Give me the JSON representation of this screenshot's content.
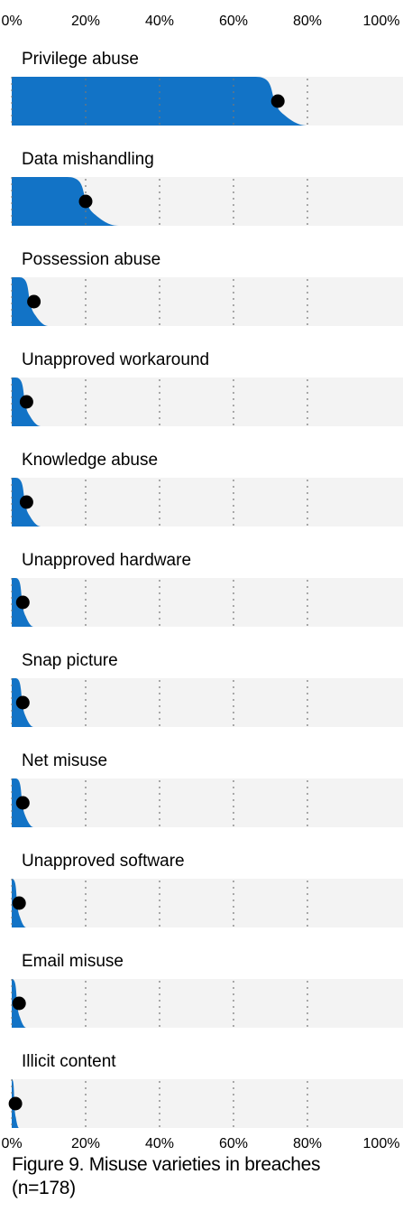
{
  "chart_data": {
    "type": "area",
    "title": "Figure 9. Misuse varieties in breaches",
    "subtitle": "(n=178)",
    "x_ticks": [
      "0%",
      "20%",
      "40%",
      "60%",
      "80%",
      "100%"
    ],
    "xlim": [
      0,
      100
    ],
    "grid": true,
    "series": [
      {
        "name": "Privilege abuse",
        "value": 72,
        "low": 66,
        "high": 80
      },
      {
        "name": "Data mishandling",
        "value": 20,
        "low": 15,
        "high": 29
      },
      {
        "name": "Possession abuse",
        "value": 6,
        "low": 2,
        "high": 10
      },
      {
        "name": "Unapproved workaround",
        "value": 4,
        "low": 1,
        "high": 8
      },
      {
        "name": "Knowledge abuse",
        "value": 4,
        "low": 1,
        "high": 8
      },
      {
        "name": "Unapproved hardware",
        "value": 3,
        "low": 1,
        "high": 6
      },
      {
        "name": "Snap picture",
        "value": 3,
        "low": 1,
        "high": 6
      },
      {
        "name": "Net misuse",
        "value": 3,
        "low": 1,
        "high": 6
      },
      {
        "name": "Unapproved software",
        "value": 2,
        "low": 0,
        "high": 4
      },
      {
        "name": "Email misuse",
        "value": 2,
        "low": 0,
        "high": 4
      },
      {
        "name": "Illicit content",
        "value": 1,
        "low": 0,
        "high": 2
      }
    ]
  },
  "colors": {
    "fill": "#1273c6",
    "track": "#f3f3f3",
    "dot": "#000000",
    "grid": "#777777"
  }
}
